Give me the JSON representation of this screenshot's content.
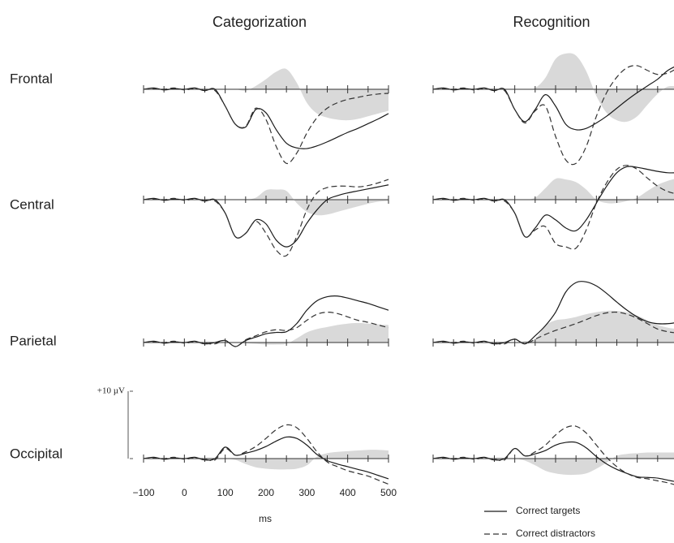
{
  "columns": [
    "Categorization",
    "Recognition"
  ],
  "rows": [
    "Frontal",
    "Central",
    "Parietal",
    "Occipital"
  ],
  "x": [
    -100,
    -75,
    -50,
    -25,
    0,
    25,
    50,
    75,
    100,
    125,
    150,
    175,
    200,
    225,
    250,
    275,
    300,
    325,
    350,
    375,
    400,
    425,
    450,
    475,
    500
  ],
  "xlim": [
    -100,
    500
  ],
  "xticks": [
    {
      "value": -100,
      "label": "−100"
    },
    0,
    100,
    200,
    300,
    400,
    500
  ],
  "xminorticks": [
    -50,
    50,
    150,
    250,
    350,
    450
  ],
  "xlabel": "ms",
  "scale_bar": {
    "value": 10,
    "label": "+10 µV"
  },
  "area_color": "#d9d9d9",
  "series": [
    {
      "name": "Correct targets",
      "color": "#1a1a1a",
      "dash": "none"
    },
    {
      "name": "Correct distractors",
      "color": "#333333",
      "dash": "7 4"
    }
  ],
  "chart_data": [
    {
      "type": "line",
      "series": [
        {
          "values": [
            0,
            0.2,
            -0.1,
            0.1,
            0,
            0.2,
            -0.2,
            0,
            -2.5,
            -5.2,
            -5.6,
            -3.0,
            -3.5,
            -6.0,
            -8.0,
            -8.7,
            -8.8,
            -8.4,
            -7.8,
            -7.1,
            -6.4,
            -5.8,
            -5.1,
            -4.4,
            -3.6
          ]
        },
        {
          "values": [
            0,
            0.1,
            0,
            0.2,
            -0.1,
            0.1,
            -0.1,
            -0.2,
            -2.5,
            -5.2,
            -5.5,
            -2.8,
            -4.5,
            -8.5,
            -11.0,
            -9.5,
            -6.5,
            -4.2,
            -2.8,
            -2.0,
            -1.5,
            -1.2,
            -0.9,
            -0.7,
            -0.6
          ]
        }
      ],
      "area": {
        "values": [
          0,
          0,
          0,
          0,
          0,
          0,
          0,
          0,
          0,
          0,
          -0.2,
          0.5,
          1.5,
          2.6,
          3.0,
          1.0,
          -2.0,
          -3.6,
          -4.2,
          -4.5,
          -4.6,
          -4.4,
          -4.0,
          -3.6,
          -3.2
        ]
      }
    },
    {
      "type": "line",
      "series": [
        {
          "values": [
            0,
            0.2,
            -0.1,
            0.1,
            0,
            0.2,
            -0.2,
            0,
            -3.0,
            -4.8,
            -3.0,
            -0.8,
            -2.5,
            -5.2,
            -6.0,
            -5.8,
            -5.0,
            -4.0,
            -2.8,
            -1.6,
            -0.5,
            0.5,
            1.5,
            2.8,
            3.6
          ]
        },
        {
          "values": [
            0,
            0.1,
            0,
            0.2,
            -0.1,
            0.1,
            -0.1,
            -0.2,
            -3.0,
            -5.0,
            -3.2,
            -2.5,
            -7.0,
            -10.5,
            -11.0,
            -8.5,
            -4.0,
            -0.5,
            1.8,
            3.2,
            3.5,
            2.8,
            2.2,
            2.4,
            3.2
          ]
        }
      ],
      "area": {
        "values": [
          0,
          0,
          0,
          0,
          0,
          0,
          0,
          0,
          0,
          0,
          0.2,
          1.7,
          4.5,
          5.3,
          5.0,
          2.7,
          -1.0,
          -3.5,
          -4.6,
          -4.8,
          -4.0,
          -2.3,
          -0.7,
          0.4,
          0.4
        ]
      }
    },
    {
      "type": "line",
      "series": [
        {
          "values": [
            0,
            0.2,
            -0.1,
            0.1,
            0,
            0.2,
            -0.2,
            0,
            -2.0,
            -5.5,
            -5.0,
            -3.0,
            -3.6,
            -6.0,
            -7.0,
            -6.0,
            -3.5,
            -1.5,
            0,
            0.6,
            1.0,
            1.3,
            1.6,
            1.9,
            2.2
          ]
        },
        {
          "values": [
            0,
            0.1,
            0,
            0.2,
            -0.1,
            0.1,
            -0.1,
            -0.2,
            -2.0,
            -5.5,
            -5.0,
            -3.2,
            -5.0,
            -7.5,
            -8.3,
            -5.5,
            -1.5,
            1.0,
            1.8,
            2.0,
            2.0,
            1.9,
            2.1,
            2.5,
            3.0
          ]
        }
      ],
      "area": {
        "values": [
          0,
          0,
          0,
          0,
          0,
          0,
          0,
          0,
          0,
          0,
          0,
          0.3,
          1.4,
          1.5,
          1.3,
          -0.5,
          -1.8,
          -2.3,
          -2.2,
          -1.8,
          -1.4,
          -1.0,
          -0.6,
          -0.3,
          -0.2
        ]
      }
    },
    {
      "type": "line",
      "series": [
        {
          "values": [
            0,
            0.2,
            -0.1,
            0.1,
            0,
            0.2,
            -0.2,
            0,
            -2.0,
            -5.5,
            -4.2,
            -2.3,
            -3.0,
            -4.2,
            -4.6,
            -3.0,
            -0.5,
            2.0,
            4.0,
            4.9,
            4.8,
            4.5,
            4.2,
            4.0,
            4.0
          ]
        },
        {
          "values": [
            0,
            0.1,
            0,
            0.2,
            -0.1,
            0.1,
            -0.1,
            -0.2,
            -2.0,
            -5.5,
            -4.5,
            -4.0,
            -6.5,
            -7.0,
            -7.2,
            -4.5,
            -0.5,
            2.5,
            4.5,
            5.1,
            4.5,
            3.2,
            2.0,
            1.2,
            0.8
          ]
        }
      ],
      "area": {
        "values": [
          0,
          0,
          0,
          0,
          0,
          0,
          0,
          0,
          0,
          0,
          0.3,
          1.7,
          3.1,
          3.0,
          2.6,
          1.5,
          0,
          -0.5,
          -0.5,
          -0.2,
          0.3,
          1.3,
          2.2,
          2.8,
          3.2
        ]
      }
    },
    {
      "type": "line",
      "series": [
        {
          "values": [
            0,
            0.2,
            -0.1,
            0.1,
            0,
            0.2,
            -0.2,
            0,
            0.3,
            -0.6,
            0.3,
            0.8,
            1.3,
            1.5,
            1.6,
            2.8,
            4.8,
            6.2,
            6.8,
            6.9,
            6.6,
            6.2,
            5.8,
            5.3,
            4.8
          ]
        },
        {
          "values": [
            0,
            0.1,
            0,
            0.2,
            -0.1,
            0.1,
            -0.1,
            -0.2,
            0.3,
            -0.6,
            0.4,
            1.0,
            1.6,
            1.9,
            1.8,
            2.2,
            3.3,
            4.2,
            4.5,
            4.3,
            3.8,
            3.3,
            3.0,
            2.6,
            2.2
          ]
        }
      ],
      "area": {
        "values": [
          0,
          0,
          0,
          0,
          0,
          0,
          0,
          0,
          0,
          0,
          -0.1,
          -0.2,
          -0.3,
          -0.3,
          -0.2,
          0.6,
          1.5,
          2.0,
          2.3,
          2.6,
          2.8,
          2.9,
          2.8,
          2.7,
          2.6
        ]
      }
    },
    {
      "type": "line",
      "series": [
        {
          "values": [
            0,
            0.2,
            -0.1,
            0.1,
            0,
            0.2,
            -0.2,
            0,
            0.5,
            -0.2,
            1.0,
            2.5,
            4.5,
            7.5,
            8.9,
            9.0,
            8.4,
            7.3,
            6.0,
            4.8,
            3.8,
            3.1,
            2.8,
            2.8,
            3.0
          ]
        },
        {
          "values": [
            0,
            0.1,
            0,
            0.2,
            -0.1,
            0.1,
            -0.1,
            -0.2,
            0.5,
            -0.2,
            0.5,
            1.2,
            1.8,
            2.3,
            2.8,
            3.4,
            4.0,
            4.4,
            4.5,
            4.2,
            3.6,
            2.8,
            2.0,
            1.6,
            1.4
          ]
        }
      ],
      "area": {
        "values": [
          0,
          0,
          0,
          0,
          0,
          0,
          0,
          0,
          0,
          0.2,
          0.5,
          2.5,
          3.3,
          3.5,
          3.8,
          4.2,
          4.5,
          4.7,
          4.7,
          4.5,
          4.0,
          3.3,
          2.6,
          2.2,
          2.0
        ]
      }
    },
    {
      "type": "line",
      "series": [
        {
          "values": [
            0,
            0.2,
            -0.1,
            0.1,
            0,
            0.2,
            -0.2,
            0,
            1.7,
            0.5,
            0.8,
            1.2,
            1.8,
            2.6,
            3.2,
            3.0,
            2.0,
            0.6,
            -0.3,
            -0.8,
            -1.2,
            -1.6,
            -2.0,
            -2.5,
            -3.0
          ]
        },
        {
          "values": [
            0,
            0.1,
            0,
            0.2,
            -0.1,
            0.1,
            -0.1,
            -0.2,
            1.5,
            0.5,
            1.0,
            1.8,
            3.0,
            4.3,
            5.0,
            4.6,
            3.0,
            1.0,
            -0.5,
            -1.2,
            -1.8,
            -2.2,
            -2.6,
            -3.2,
            -3.8
          ]
        }
      ],
      "area": {
        "values": [
          0,
          0,
          0,
          0,
          0,
          0,
          0,
          0,
          0,
          -0.2,
          -0.8,
          -1.3,
          -1.5,
          -1.6,
          -1.6,
          -1.5,
          -1.0,
          0.3,
          0.8,
          1.0,
          1.1,
          1.2,
          1.3,
          1.3,
          1.2
        ]
      }
    },
    {
      "type": "line",
      "series": [
        {
          "values": [
            0,
            0.2,
            -0.1,
            0.1,
            0,
            0.2,
            -0.2,
            0,
            1.5,
            0.4,
            0.7,
            1.2,
            2.0,
            2.4,
            2.4,
            1.6,
            0.3,
            -0.8,
            -1.6,
            -2.2,
            -2.7,
            -2.8,
            -2.9,
            -3.2,
            -3.5
          ]
        },
        {
          "values": [
            0,
            0.1,
            0,
            0.2,
            -0.1,
            0.1,
            -0.1,
            -0.2,
            1.5,
            0.4,
            1.0,
            2.0,
            3.5,
            4.6,
            4.8,
            3.8,
            2.0,
            0.2,
            -1.2,
            -2.2,
            -2.8,
            -3.0,
            -3.3,
            -3.6,
            -4.0
          ]
        }
      ],
      "area": {
        "values": [
          0,
          0,
          0,
          0,
          0,
          0,
          0,
          0,
          0,
          -0.3,
          -1.0,
          -1.8,
          -2.2,
          -2.4,
          -2.4,
          -2.2,
          -1.5,
          -0.6,
          0.4,
          0.7,
          0.8,
          0.9,
          0.9,
          0.9,
          0.9
        ]
      }
    }
  ]
}
